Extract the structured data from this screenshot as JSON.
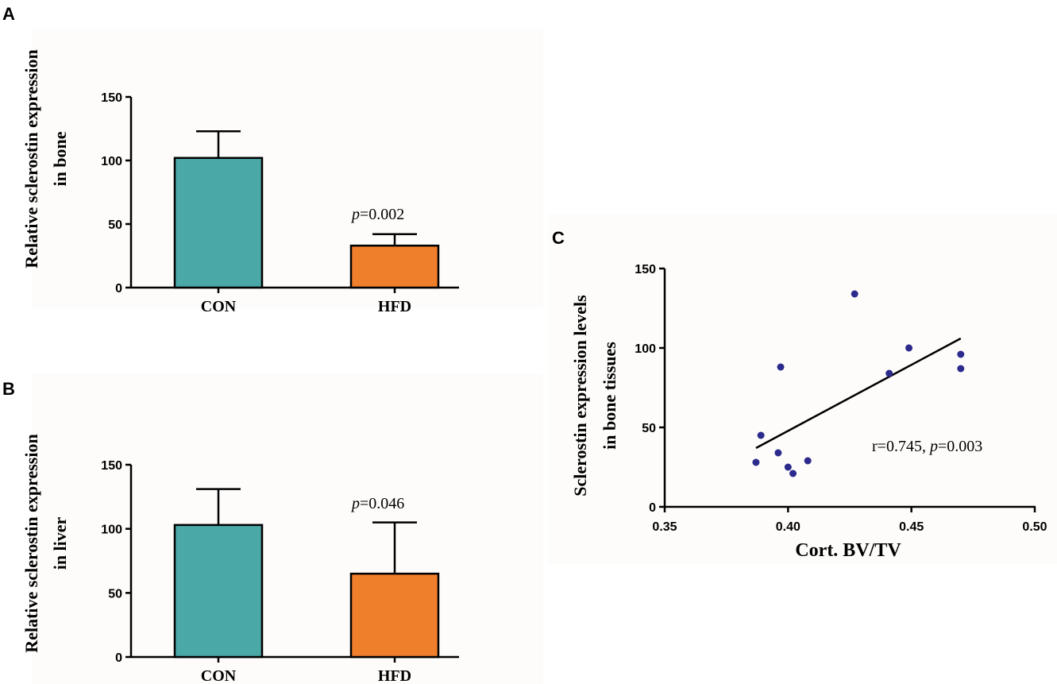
{
  "chart_data": [
    {
      "panel": "A",
      "type": "bar",
      "ylabel_lines": [
        "Relative sclerostin expression",
        "in bone"
      ],
      "xlabel": "",
      "categories": [
        "CON",
        "HFD"
      ],
      "values": [
        102,
        33
      ],
      "errors": [
        21,
        9
      ],
      "ylim": [
        0,
        150
      ],
      "yticks": [
        0,
        50,
        100,
        150
      ],
      "colors": [
        "#4aa8a6",
        "#f07f2c"
      ],
      "annotation": {
        "p_symbol": "p",
        "text": "=0.002"
      }
    },
    {
      "panel": "B",
      "type": "bar",
      "ylabel_lines": [
        "Relative sclerostin expression",
        "in liver"
      ],
      "xlabel": "",
      "categories": [
        "CON",
        "HFD"
      ],
      "values": [
        103,
        65
      ],
      "errors": [
        28,
        40
      ],
      "ylim": [
        0,
        150
      ],
      "yticks": [
        0,
        50,
        100,
        150
      ],
      "colors": [
        "#4aa8a6",
        "#f07f2c"
      ],
      "annotation": {
        "p_symbol": "p",
        "text": "=0.046"
      }
    },
    {
      "panel": "C",
      "type": "scatter",
      "ylabel_lines": [
        "Sclerostin expression levels",
        "in bone tissues"
      ],
      "xlabel": "Cort. BV/TV",
      "x": [
        0.387,
        0.389,
        0.396,
        0.397,
        0.4,
        0.402,
        0.408,
        0.427,
        0.441,
        0.449,
        0.47,
        0.47
      ],
      "y": [
        28,
        45,
        34,
        88,
        25,
        21,
        29,
        134,
        84,
        100,
        96,
        87
      ],
      "xlim": [
        0.35,
        0.5
      ],
      "ylim": [
        0,
        150
      ],
      "xticks": [
        "0.35",
        "0.40",
        "0.45",
        "0.50"
      ],
      "yticks": [
        0,
        50,
        100,
        150
      ],
      "fit_line": {
        "x": [
          0.387,
          0.47
        ],
        "y": [
          37,
          106
        ]
      },
      "point_color": "#2c2a8c",
      "annotation": {
        "prefix": "r=0.745, ",
        "p_symbol": "p",
        "text": "=0.003"
      }
    }
  ]
}
